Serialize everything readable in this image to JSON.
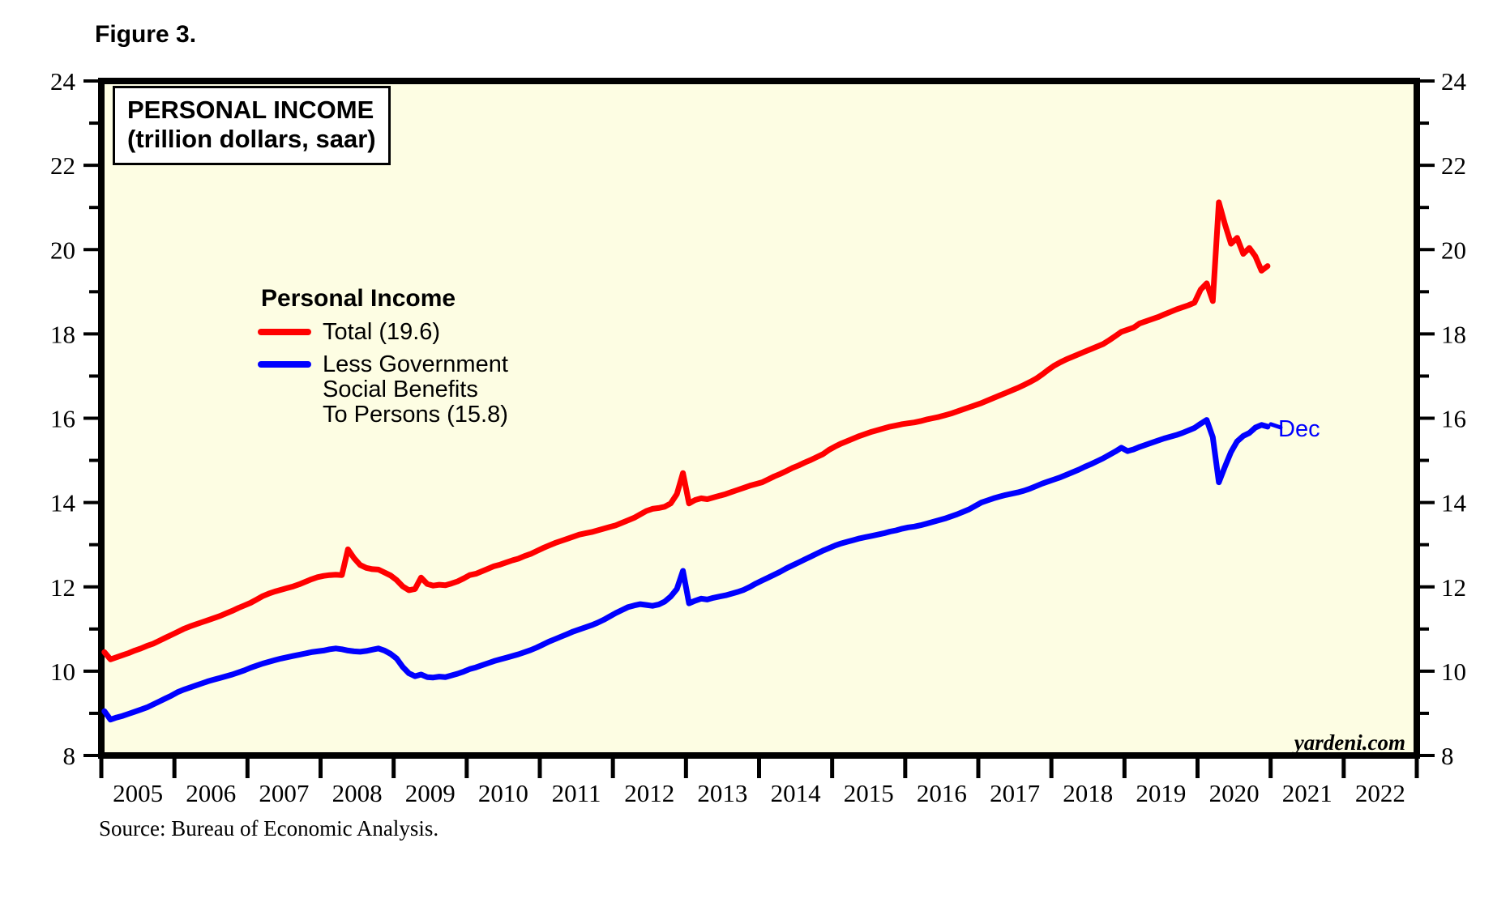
{
  "figure_label": "Figure 3.",
  "title_line1": "PERSONAL INCOME",
  "title_line2": "(trillion dollars, saar)",
  "legend": {
    "title": "Personal Income",
    "items": [
      {
        "label": "Total (19.6)",
        "color": "#ff0000"
      },
      {
        "lines": [
          "Less Government",
          "Social Benefits",
          "To Persons (15.8)"
        ],
        "color": "#0000ff"
      }
    ]
  },
  "annotations": {
    "last_point_label": "Dec",
    "watermark": "yardeni.com"
  },
  "source_note": "Source: Bureau of Economic Analysis.",
  "colors": {
    "plot_bg": "#fdfde3",
    "frame": "#000000",
    "total_line": "#ff0000",
    "less_gov_line": "#0000ff"
  },
  "chart_data": {
    "type": "line",
    "title": "PERSONAL INCOME (trillion dollars, saar)",
    "xlabel": "",
    "ylabel": "trillion dollars, saar",
    "ylim": [
      8,
      24
    ],
    "y_major_ticks": [
      8,
      10,
      12,
      14,
      16,
      18,
      20,
      22,
      24
    ],
    "y_minor_step": 1,
    "grid": false,
    "axis_labels_both_sides": true,
    "x_year_labels": [
      "2005",
      "2006",
      "2007",
      "2008",
      "2009",
      "2010",
      "2011",
      "2012",
      "2013",
      "2014",
      "2015",
      "2016",
      "2017",
      "2018",
      "2019",
      "2020",
      "2021",
      "2022"
    ],
    "x_frequency": "monthly",
    "x_start": "2005-01",
    "x_end_data": "2020-12",
    "last_point_annotation": "Dec",
    "series": [
      {
        "key": "total",
        "name": "Total",
        "legend_label": "Total (19.6)",
        "color": "#ff0000",
        "last_value": 19.6,
        "values": [
          10.45,
          10.28,
          10.33,
          10.38,
          10.43,
          10.49,
          10.54,
          10.6,
          10.65,
          10.72,
          10.79,
          10.86,
          10.93,
          11.0,
          11.06,
          11.11,
          11.16,
          11.21,
          11.26,
          11.31,
          11.37,
          11.43,
          11.5,
          11.56,
          11.62,
          11.7,
          11.78,
          11.84,
          11.89,
          11.93,
          11.97,
          12.01,
          12.06,
          12.12,
          12.18,
          12.23,
          12.26,
          12.28,
          12.29,
          12.28,
          12.89,
          12.68,
          12.52,
          12.45,
          12.42,
          12.41,
          12.34,
          12.27,
          12.16,
          12.01,
          11.92,
          11.95,
          12.22,
          12.07,
          12.03,
          12.05,
          12.04,
          12.08,
          12.13,
          12.2,
          12.28,
          12.31,
          12.37,
          12.43,
          12.49,
          12.53,
          12.58,
          12.63,
          12.67,
          12.73,
          12.78,
          12.85,
          12.92,
          12.98,
          13.04,
          13.09,
          13.14,
          13.19,
          13.24,
          13.27,
          13.3,
          13.34,
          13.38,
          13.42,
          13.46,
          13.52,
          13.58,
          13.64,
          13.72,
          13.8,
          13.85,
          13.87,
          13.9,
          13.98,
          14.2,
          14.7,
          13.98,
          14.06,
          14.1,
          14.08,
          14.12,
          14.16,
          14.2,
          14.25,
          14.3,
          14.35,
          14.4,
          14.44,
          14.48,
          14.55,
          14.62,
          14.68,
          14.75,
          14.82,
          14.88,
          14.95,
          15.01,
          15.08,
          15.15,
          15.25,
          15.33,
          15.4,
          15.46,
          15.52,
          15.58,
          15.63,
          15.68,
          15.72,
          15.76,
          15.8,
          15.83,
          15.86,
          15.88,
          15.9,
          15.93,
          15.97,
          16.0,
          16.03,
          16.07,
          16.11,
          16.16,
          16.21,
          16.26,
          16.31,
          16.36,
          16.42,
          16.48,
          16.54,
          16.6,
          16.66,
          16.72,
          16.79,
          16.86,
          16.94,
          17.04,
          17.15,
          17.25,
          17.33,
          17.4,
          17.46,
          17.52,
          17.58,
          17.64,
          17.7,
          17.76,
          17.85,
          17.95,
          18.05,
          18.1,
          18.15,
          18.25,
          18.3,
          18.35,
          18.4,
          18.46,
          18.52,
          18.58,
          18.63,
          18.68,
          18.74,
          19.05,
          19.2,
          18.78,
          21.12,
          20.6,
          20.14,
          20.28,
          19.9,
          20.04,
          19.84,
          19.5,
          19.61
        ]
      },
      {
        "key": "less-gov",
        "name": "Less Government Social Benefits To Persons",
        "legend_label": "Less Government Social Benefits To Persons (15.8)",
        "color": "#0000ff",
        "last_value": 15.8,
        "values": [
          9.05,
          8.85,
          8.9,
          8.94,
          8.99,
          9.04,
          9.09,
          9.14,
          9.21,
          9.28,
          9.35,
          9.42,
          9.5,
          9.56,
          9.61,
          9.66,
          9.71,
          9.76,
          9.8,
          9.84,
          9.88,
          9.92,
          9.97,
          10.02,
          10.08,
          10.13,
          10.18,
          10.22,
          10.26,
          10.3,
          10.33,
          10.36,
          10.39,
          10.42,
          10.45,
          10.47,
          10.49,
          10.52,
          10.54,
          10.52,
          10.49,
          10.47,
          10.46,
          10.48,
          10.51,
          10.54,
          10.49,
          10.41,
          10.3,
          10.1,
          9.95,
          9.88,
          9.92,
          9.86,
          9.85,
          9.87,
          9.86,
          9.9,
          9.94,
          9.99,
          10.05,
          10.09,
          10.14,
          10.19,
          10.24,
          10.28,
          10.32,
          10.36,
          10.4,
          10.45,
          10.5,
          10.56,
          10.63,
          10.7,
          10.76,
          10.82,
          10.88,
          10.94,
          10.99,
          11.04,
          11.09,
          11.15,
          11.22,
          11.3,
          11.38,
          11.45,
          11.52,
          11.56,
          11.59,
          11.57,
          11.55,
          11.58,
          11.65,
          11.77,
          11.95,
          12.38,
          11.61,
          11.67,
          11.72,
          11.7,
          11.74,
          11.77,
          11.8,
          11.84,
          11.88,
          11.93,
          12.0,
          12.08,
          12.15,
          12.22,
          12.29,
          12.36,
          12.44,
          12.51,
          12.58,
          12.65,
          12.72,
          12.79,
          12.86,
          12.92,
          12.98,
          13.03,
          13.07,
          13.11,
          13.15,
          13.18,
          13.21,
          13.24,
          13.27,
          13.31,
          13.34,
          13.38,
          13.41,
          13.43,
          13.46,
          13.5,
          13.54,
          13.58,
          13.62,
          13.67,
          13.72,
          13.78,
          13.84,
          13.92,
          14.0,
          14.05,
          14.1,
          14.14,
          14.18,
          14.21,
          14.24,
          14.28,
          14.33,
          14.39,
          14.45,
          14.5,
          14.55,
          14.6,
          14.66,
          14.72,
          14.78,
          14.85,
          14.91,
          14.98,
          15.05,
          15.13,
          15.21,
          15.3,
          15.22,
          15.26,
          15.32,
          15.37,
          15.42,
          15.47,
          15.52,
          15.56,
          15.6,
          15.65,
          15.71,
          15.77,
          15.87,
          15.96,
          15.55,
          14.48,
          14.85,
          15.2,
          15.45,
          15.58,
          15.65,
          15.78,
          15.84,
          15.8
        ]
      }
    ]
  }
}
